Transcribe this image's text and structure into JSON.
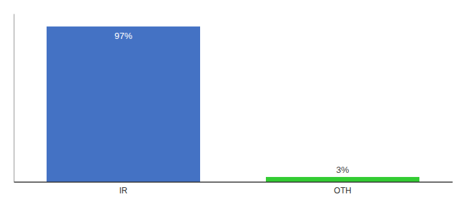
{
  "chart_data": {
    "type": "bar",
    "categories": [
      "IR",
      "OTH"
    ],
    "values": [
      97,
      3
    ],
    "value_labels": [
      "97%",
      "3%"
    ],
    "colors": [
      "#4472c4",
      "#33cc33"
    ],
    "ylim": [
      0,
      105
    ],
    "data_labels": true,
    "tick_labels": "x",
    "grid": false
  }
}
